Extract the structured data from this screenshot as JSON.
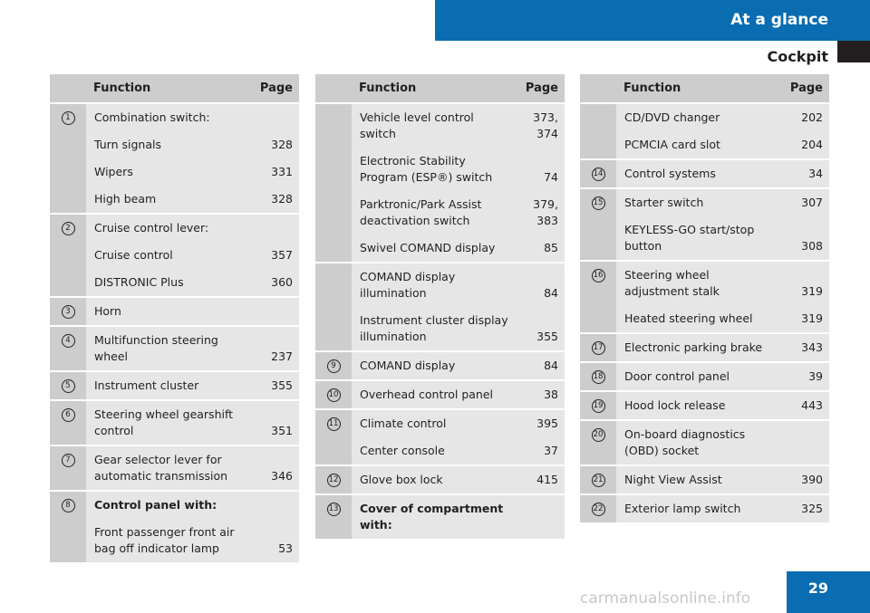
{
  "header": {
    "title": "At a glance",
    "subtitle": "Cockpit"
  },
  "page_number": "29",
  "watermark": "carmanualsonline.info",
  "column_headers": {
    "function": "Function",
    "page": "Page"
  },
  "tables": [
    {
      "groups": [
        {
          "num": "1",
          "rows": [
            {
              "fn": "Combination switch:",
              "pg": ""
            },
            {
              "fn": "Turn signals",
              "pg": "328"
            },
            {
              "fn": "Wipers",
              "pg": "331"
            },
            {
              "fn": "High beam",
              "pg": "328"
            }
          ]
        },
        {
          "num": "2",
          "rows": [
            {
              "fn": "Cruise control lever:",
              "pg": ""
            },
            {
              "fn": "Cruise control",
              "pg": "357"
            },
            {
              "fn": "DISTRONIC Plus",
              "pg": "360"
            }
          ]
        },
        {
          "num": "3",
          "rows": [
            {
              "fn": "Horn",
              "pg": ""
            }
          ]
        },
        {
          "num": "4",
          "rows": [
            {
              "fn": "Multifunction steering wheel",
              "pg": "237"
            }
          ]
        },
        {
          "num": "5",
          "rows": [
            {
              "fn": "Instrument cluster",
              "pg": "355"
            }
          ]
        },
        {
          "num": "6",
          "rows": [
            {
              "fn": "Steering wheel gearshift control",
              "pg": "351"
            }
          ]
        },
        {
          "num": "7",
          "rows": [
            {
              "fn": "Gear selector lever for automatic transmission",
              "pg": "346"
            }
          ]
        },
        {
          "num": "8",
          "rows": [
            {
              "fn": "Control panel with:",
              "pg": "",
              "bold": true
            },
            {
              "fn": "Front passenger front air bag off indicator lamp",
              "pg": "53"
            }
          ]
        }
      ]
    },
    {
      "groups": [
        {
          "num": "",
          "rows": [
            {
              "fn": "Vehicle level control switch",
              "pg": "373, 374"
            },
            {
              "fn": "Electronic Stability Program (ESP®) switch",
              "pg": "74"
            },
            {
              "fn": "Parktronic/Park Assist deactivation switch",
              "pg": "379, 383"
            },
            {
              "fn": "Swivel COMAND display",
              "pg": "85"
            }
          ]
        },
        {
          "num": "",
          "rows": [
            {
              "fn": "COMAND display illumination",
              "pg": "84"
            },
            {
              "fn": "Instrument cluster display illumination",
              "pg": "355"
            }
          ]
        },
        {
          "num": "9",
          "rows": [
            {
              "fn": "COMAND display",
              "pg": "84"
            }
          ]
        },
        {
          "num": "10",
          "rows": [
            {
              "fn": "Overhead control panel",
              "pg": "38"
            }
          ]
        },
        {
          "num": "11",
          "rows": [
            {
              "fn": "Climate control",
              "pg": "395"
            },
            {
              "fn": "Center console",
              "pg": "37"
            }
          ]
        },
        {
          "num": "12",
          "rows": [
            {
              "fn": "Glove box lock",
              "pg": "415"
            }
          ]
        },
        {
          "num": "13",
          "rows": [
            {
              "fn": "Cover of compartment with:",
              "pg": "",
              "bold": true
            }
          ]
        }
      ]
    },
    {
      "groups": [
        {
          "num": "",
          "rows": [
            {
              "fn": "CD/DVD changer",
              "pg": "202"
            },
            {
              "fn": "PCMCIA card slot",
              "pg": "204"
            }
          ]
        },
        {
          "num": "14",
          "rows": [
            {
              "fn": "Control systems",
              "pg": "34"
            }
          ]
        },
        {
          "num": "15",
          "rows": [
            {
              "fn": "Starter switch",
              "pg": "307"
            },
            {
              "fn": "KEYLESS-GO start/stop button",
              "pg": "308"
            }
          ]
        },
        {
          "num": "16",
          "rows": [
            {
              "fn": "Steering wheel adjustment stalk",
              "pg": "319"
            },
            {
              "fn": "Heated steering wheel",
              "pg": "319"
            }
          ]
        },
        {
          "num": "17",
          "rows": [
            {
              "fn": "Electronic parking brake",
              "pg": "343"
            }
          ]
        },
        {
          "num": "18",
          "rows": [
            {
              "fn": "Door control panel",
              "pg": "39"
            }
          ]
        },
        {
          "num": "19",
          "rows": [
            {
              "fn": "Hood lock release",
              "pg": "443"
            }
          ]
        },
        {
          "num": "20",
          "rows": [
            {
              "fn": "On-board diagnostics (OBD) socket",
              "pg": ""
            }
          ]
        },
        {
          "num": "21",
          "rows": [
            {
              "fn": "Night View Assist",
              "pg": "390"
            }
          ]
        },
        {
          "num": "22",
          "rows": [
            {
              "fn": "Exterior lamp switch",
              "pg": "325"
            }
          ]
        }
      ]
    }
  ]
}
